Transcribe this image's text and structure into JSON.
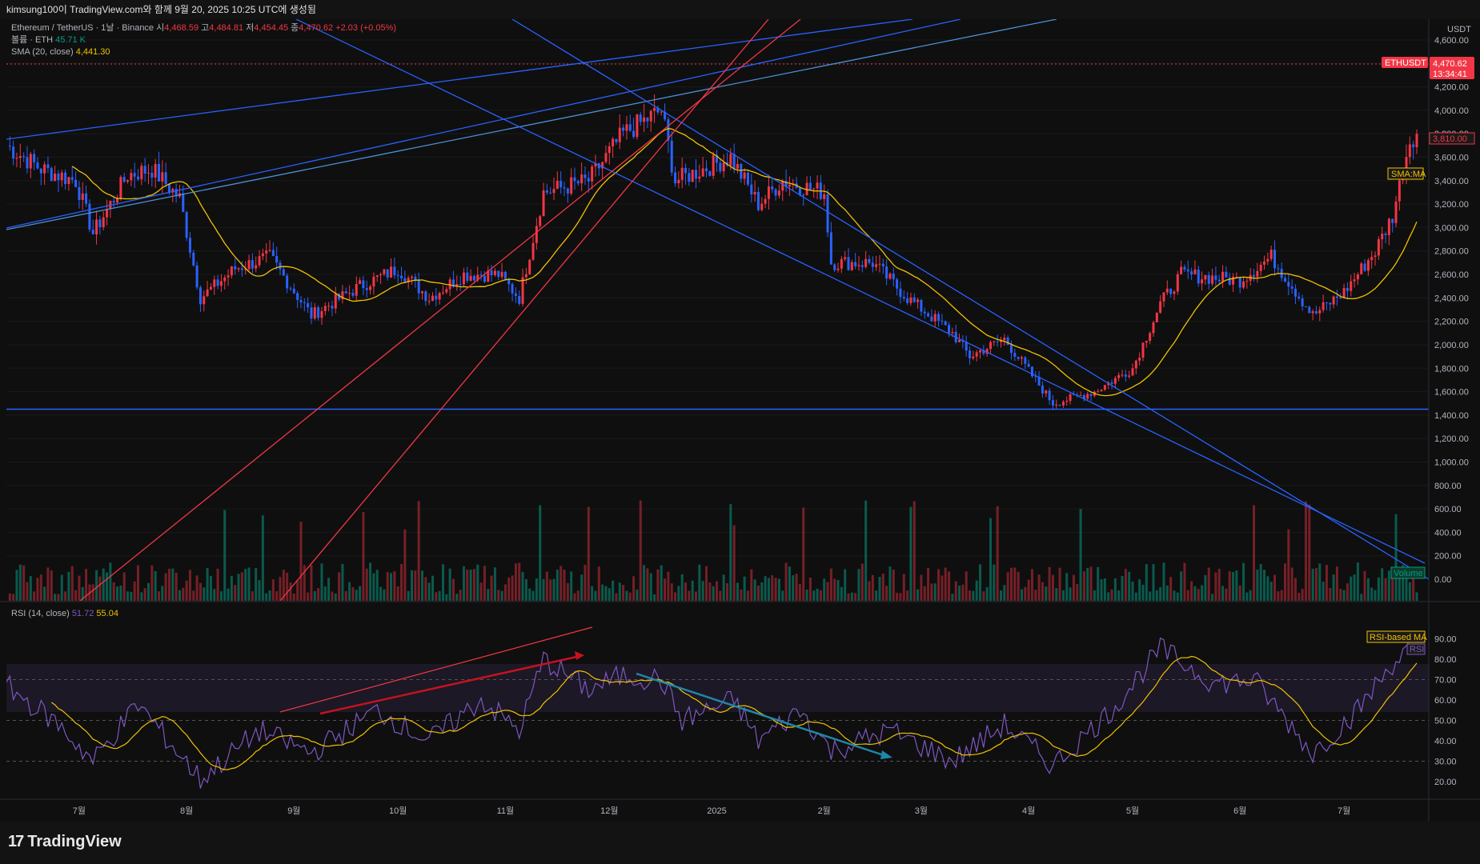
{
  "header": {
    "caption": "kimsung100이 TradingView.com와 함께 9월 20, 2025 10:25 UTC에 생성됨"
  },
  "legend": {
    "symbol": "Ethereum / TetherUS · 1날 · Binance",
    "open_label": "시",
    "open": "4,468.59",
    "high_label": "고",
    "high": "4,484.81",
    "low_label": "저",
    "low": "4,454.45",
    "close_label": "종",
    "close": "4,470.62",
    "change": "+2.03 (+0.05%)",
    "volume_label": "볼륨 · ETH",
    "volume": "45.71 K",
    "sma_label": "SMA (20, close)",
    "sma_value": "4,441.30",
    "rsi_label": "RSI (14, close)",
    "rsi_value": "51.72",
    "rsi_ma_value": "55.04"
  },
  "price_axis": {
    "currency": "USDT",
    "ticks": [
      "4,600.00",
      "4,200.00",
      "4,000.00",
      "3,800.00",
      "3,600.00",
      "3,400.00",
      "3,200.00",
      "3,000.00",
      "2,800.00",
      "2,600.00",
      "2,400.00",
      "2,200.00",
      "2,000.00",
      "1,800.00",
      "1,600.00",
      "1,400.00",
      "1,200.00",
      "1,000.00",
      "800.00",
      "600.00",
      "400.00",
      "200.00",
      "0.00"
    ],
    "last_price_tag": {
      "symbol": "ETHUSDT",
      "price": "4,470.62",
      "countdown": "13:34:41"
    },
    "cursor_price": "3,810.00",
    "sma_tag": "SMA:MA",
    "volume_tag": "Volume"
  },
  "rsi_axis": {
    "ticks": [
      "90.00",
      "80.00",
      "70.00",
      "60.00",
      "50.00",
      "40.00",
      "30.00",
      "20.00"
    ],
    "ma_tag": "RSI-based MA",
    "rsi_tag": "RSI"
  },
  "time_axis": {
    "labels": [
      "7월",
      "8월",
      "9월",
      "10월",
      "11월",
      "12월",
      "2025",
      "2월",
      "3월",
      "4월",
      "5월",
      "6월",
      "7월"
    ]
  },
  "footer": {
    "brand": "TradingView"
  },
  "colors": {
    "up": "#089981",
    "down": "#f23645",
    "blue_candle": "#2962ff",
    "sma": "#f0c000",
    "rsi": "#7e57c2",
    "trend_blue": "#2962ff",
    "trend_red": "#f23645"
  },
  "chart_data": {
    "type": "candlestick",
    "symbol": "ETHUSDT",
    "interval": "1D",
    "x_range": [
      "2024-06-10",
      "2025-07-22"
    ],
    "price_ylim": [
      0,
      4600
    ],
    "close_path": [
      {
        "date": "2024-06-10",
        "close": 3700
      },
      {
        "date": "2024-06-20",
        "close": 3500
      },
      {
        "date": "2024-06-30",
        "close": 3400
      },
      {
        "date": "2024-07-05",
        "close": 2950
      },
      {
        "date": "2024-07-15",
        "close": 3450
      },
      {
        "date": "2024-07-22",
        "close": 3500
      },
      {
        "date": "2024-07-30",
        "close": 3250
      },
      {
        "date": "2024-08-05",
        "close": 2400
      },
      {
        "date": "2024-08-15",
        "close": 2650
      },
      {
        "date": "2024-08-25",
        "close": 2750
      },
      {
        "date": "2024-09-06",
        "close": 2250
      },
      {
        "date": "2024-09-20",
        "close": 2500
      },
      {
        "date": "2024-10-01",
        "close": 2650
      },
      {
        "date": "2024-10-10",
        "close": 2400
      },
      {
        "date": "2024-10-20",
        "close": 2600
      },
      {
        "date": "2024-10-30",
        "close": 2600
      },
      {
        "date": "2024-11-05",
        "close": 2400
      },
      {
        "date": "2024-11-12",
        "close": 3300
      },
      {
        "date": "2024-11-25",
        "close": 3400
      },
      {
        "date": "2024-12-05",
        "close": 3800
      },
      {
        "date": "2024-12-16",
        "close": 4000
      },
      {
        "date": "2024-12-20",
        "close": 3400
      },
      {
        "date": "2025-01-05",
        "close": 3600
      },
      {
        "date": "2025-01-13",
        "close": 3200
      },
      {
        "date": "2025-01-20",
        "close": 3400
      },
      {
        "date": "2025-02-01",
        "close": 3300
      },
      {
        "date": "2025-02-03",
        "close": 2700
      },
      {
        "date": "2025-02-15",
        "close": 2700
      },
      {
        "date": "2025-02-25",
        "close": 2400
      },
      {
        "date": "2025-03-10",
        "close": 2100
      },
      {
        "date": "2025-03-15",
        "close": 1900
      },
      {
        "date": "2025-03-25",
        "close": 2050
      },
      {
        "date": "2025-04-08",
        "close": 1500
      },
      {
        "date": "2025-04-20",
        "close": 1600
      },
      {
        "date": "2025-05-01",
        "close": 1800
      },
      {
        "date": "2025-05-09",
        "close": 2350
      },
      {
        "date": "2025-05-15",
        "close": 2600
      },
      {
        "date": "2025-06-01",
        "close": 2550
      },
      {
        "date": "2025-06-10",
        "close": 2750
      },
      {
        "date": "2025-06-22",
        "close": 2250
      },
      {
        "date": "2025-07-01",
        "close": 2450
      },
      {
        "date": "2025-07-10",
        "close": 2800
      },
      {
        "date": "2025-07-15",
        "close": 3100
      },
      {
        "date": "2025-07-20",
        "close": 3750
      },
      {
        "date": "2025-07-22",
        "close": 3810
      }
    ],
    "horizontal_support": 1450,
    "rsi_ylim": [
      15,
      92
    ],
    "rsi_band": [
      30,
      70
    ],
    "rsi_path": [
      {
        "date": "2024-06-10",
        "rsi": 67
      },
      {
        "date": "2024-06-25",
        "rsi": 48
      },
      {
        "date": "2024-07-05",
        "rsi": 30
      },
      {
        "date": "2024-07-18",
        "rsi": 58
      },
      {
        "date": "2024-08-05",
        "rsi": 21
      },
      {
        "date": "2024-08-22",
        "rsi": 45
      },
      {
        "date": "2024-09-06",
        "rsi": 34
      },
      {
        "date": "2024-09-25",
        "rsi": 55
      },
      {
        "date": "2024-10-10",
        "rsi": 40
      },
      {
        "date": "2024-10-25",
        "rsi": 60
      },
      {
        "date": "2024-11-05",
        "rsi": 45
      },
      {
        "date": "2024-11-12",
        "rsi": 80
      },
      {
        "date": "2024-11-25",
        "rsi": 65
      },
      {
        "date": "2024-12-05",
        "rsi": 72
      },
      {
        "date": "2024-12-16",
        "rsi": 70
      },
      {
        "date": "2024-12-22",
        "rsi": 50
      },
      {
        "date": "2025-01-06",
        "rsi": 60
      },
      {
        "date": "2025-01-13",
        "rsi": 40
      },
      {
        "date": "2025-01-25",
        "rsi": 55
      },
      {
        "date": "2025-02-03",
        "rsi": 35
      },
      {
        "date": "2025-02-20",
        "rsi": 45
      },
      {
        "date": "2025-03-10",
        "rsi": 30
      },
      {
        "date": "2025-03-25",
        "rsi": 48
      },
      {
        "date": "2025-04-08",
        "rsi": 28
      },
      {
        "date": "2025-04-25",
        "rsi": 55
      },
      {
        "date": "2025-05-09",
        "rsi": 85
      },
      {
        "date": "2025-05-25",
        "rsi": 68
      },
      {
        "date": "2025-06-05",
        "rsi": 70
      },
      {
        "date": "2025-06-22",
        "rsi": 34
      },
      {
        "date": "2025-07-05",
        "rsi": 55
      },
      {
        "date": "2025-07-15",
        "rsi": 78
      },
      {
        "date": "2025-07-22",
        "rsi": 88
      }
    ]
  }
}
